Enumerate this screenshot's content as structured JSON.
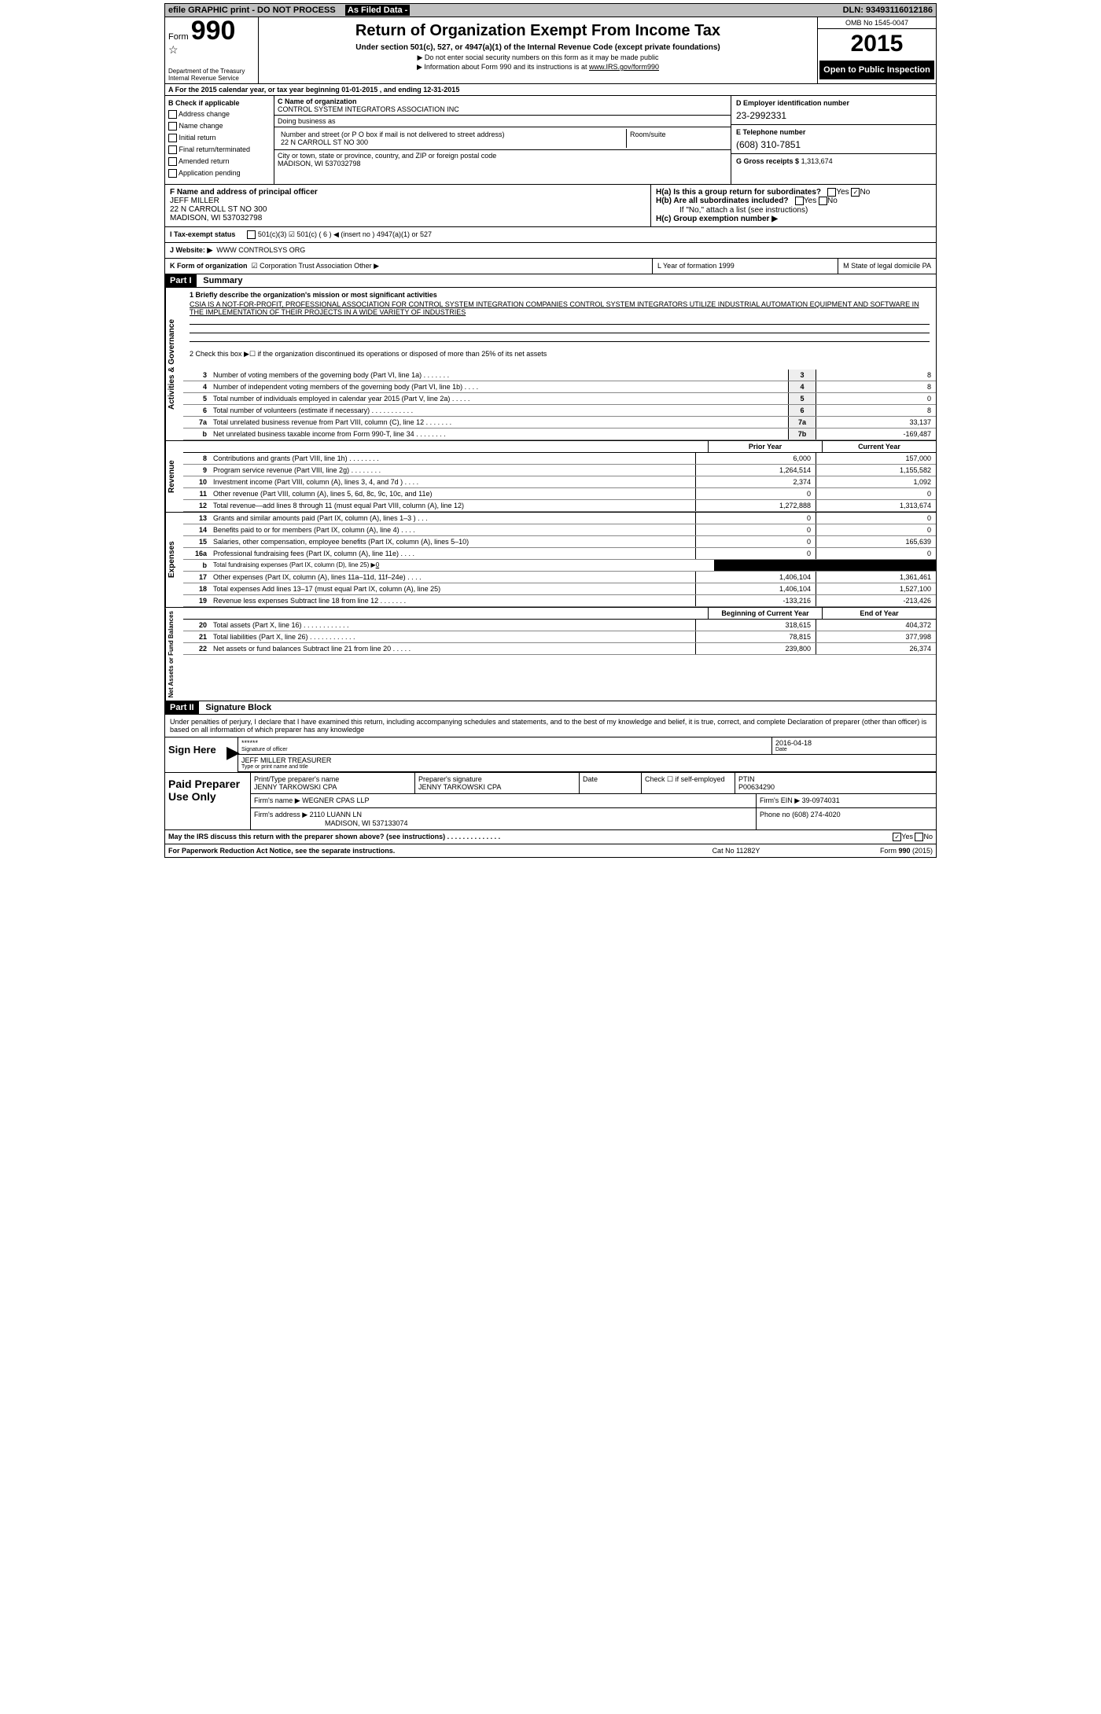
{
  "topbar": {
    "efile": "efile GRAPHIC print - DO NOT PROCESS",
    "asfiled": "As Filed Data -",
    "dln_label": "DLN:",
    "dln": "93493116012186"
  },
  "header": {
    "form": "Form",
    "num": "990",
    "dept": "Department of the Treasury\nInternal Revenue Service",
    "title": "Return of Organization Exempt From Income Tax",
    "sub": "Under section 501(c), 527, or 4947(a)(1) of the Internal Revenue Code (except private foundations)",
    "arrow1": "▶ Do not enter social security numbers on this form as it may be made public",
    "arrow2_pre": "▶ Information about Form 990 and its instructions is at ",
    "arrow2_link": "www.IRS.gov/form990",
    "omb": "OMB No 1545-0047",
    "year": "2015",
    "open": "Open to Public Inspection"
  },
  "rowA": "A  For the 2015 calendar year, or tax year beginning 01-01-2015    , and ending 12-31-2015",
  "B": {
    "hdr": "B Check if applicable",
    "items": [
      "Address change",
      "Name change",
      "Initial return",
      "Final return/terminated",
      "Amended return",
      "Application pending"
    ]
  },
  "C": {
    "name_label": "C Name of organization",
    "name": "CONTROL SYSTEM INTEGRATORS ASSOCIATION INC",
    "dba_label": "Doing business as",
    "street_label": "Number and street (or P O  box if mail is not delivered to street address)",
    "street": "22 N CARROLL ST NO 300",
    "room_label": "Room/suite",
    "city_label": "City or town, state or province, country, and ZIP or foreign postal code",
    "city": "MADISON, WI  537032798"
  },
  "D": {
    "label": "D Employer identification number",
    "val": "23-2992331"
  },
  "E": {
    "label": "E Telephone number",
    "val": "(608) 310-7851"
  },
  "G": {
    "label": "G Gross receipts $",
    "val": "1,313,674"
  },
  "F": {
    "label": "F   Name and address of principal officer",
    "name": "JEFF MILLER",
    "addr1": "22 N CARROLL ST NO 300",
    "addr2": "MADISON, WI  537032798"
  },
  "H": {
    "a": "H(a)  Is this a group return for subordinates?",
    "a_yes": "Yes",
    "a_no": "No",
    "b": "H(b)  Are all subordinates included?",
    "b_yes": "Yes",
    "b_no": "No",
    "b_note": "If \"No,\" attach a list  (see instructions)",
    "c": "H(c)   Group exemption number ▶"
  },
  "I": {
    "label": "I   Tax-exempt status",
    "opts": "501(c)(3)    ☑  501(c) ( 6 ) ◀ (insert no )      4947(a)(1) or      527"
  },
  "J": {
    "label": "J   Website: ▶",
    "val": "WWW CONTROLSYS ORG"
  },
  "K": {
    "label": "K Form of organization",
    "opts": "☑ Corporation    Trust    Association    Other ▶",
    "L": "L Year of formation   1999",
    "M": "M State of legal domicile   PA"
  },
  "part1": {
    "hdr": "Part I",
    "title": "Summary",
    "q1": "1 Briefly describe the organization's mission or most significant activities",
    "mission": "CSIA IS A NOT-FOR-PROFIT, PROFESSIONAL ASSOCIATION FOR CONTROL SYSTEM INTEGRATION COMPANIES CONTROL SYSTEM INTEGRATORS UTILIZE INDUSTRIAL AUTOMATION EQUIPMENT AND SOFTWARE IN THE IMPLEMENTATION OF THEIR PROJECTS IN A WIDE VARIETY OF INDUSTRIES",
    "q2": "2  Check this box ▶☐ if the organization discontinued its operations or disposed of more than 25% of its net assets",
    "lines_single": [
      {
        "n": "3",
        "txt": "Number of voting members of the governing body (Part VI, line 1a)  .   .   .   .   .   .   .",
        "box": "3",
        "val": "8"
      },
      {
        "n": "4",
        "txt": "Number of independent voting members of the governing body (Part VI, line 1b)  .   .   .   .",
        "box": "4",
        "val": "8"
      },
      {
        "n": "5",
        "txt": "Total number of individuals employed in calendar year 2015 (Part V, line 2a)  .   .   .   .   .",
        "box": "5",
        "val": "0"
      },
      {
        "n": "6",
        "txt": "Total number of volunteers (estimate if necessary)   .   .   .   .   .   .   .   .   .   .   .",
        "box": "6",
        "val": "8"
      },
      {
        "n": "7a",
        "txt": "Total unrelated business revenue from Part VIII, column (C), line 12  .   .   .   .   .   .   .",
        "box": "7a",
        "val": "33,137"
      },
      {
        "n": "b",
        "txt": "Net unrelated business taxable income from Form 990-T, line 34  .   .   .   .   .   .   .   .",
        "box": "7b",
        "val": "-169,487"
      }
    ],
    "prior_hdr": "Prior Year",
    "current_hdr": "Current Year",
    "rev": [
      {
        "n": "8",
        "txt": "Contributions and grants (Part VIII, line 1h)  .   .   .   .   .   .   .   .",
        "p": "6,000",
        "c": "157,000"
      },
      {
        "n": "9",
        "txt": "Program service revenue (Part VIII, line 2g)   .   .   .   .   .   .   .   .",
        "p": "1,264,514",
        "c": "1,155,582"
      },
      {
        "n": "10",
        "txt": "Investment income (Part VIII, column (A), lines 3, 4, and 7d )   .   .   .   .",
        "p": "2,374",
        "c": "1,092"
      },
      {
        "n": "11",
        "txt": "Other revenue (Part VIII, column (A), lines 5, 6d, 8c, 9c, 10c, and 11e)",
        "p": "0",
        "c": "0"
      },
      {
        "n": "12",
        "txt": "Total revenue—add lines 8 through 11 (must equal Part VIII, column (A), line 12)",
        "p": "1,272,888",
        "c": "1,313,674"
      }
    ],
    "exp": [
      {
        "n": "13",
        "txt": "Grants and similar amounts paid (Part IX, column (A), lines 1–3 )  .   .   .",
        "p": "0",
        "c": "0"
      },
      {
        "n": "14",
        "txt": "Benefits paid to or for members (Part IX, column (A), line 4)  .   .   .   .",
        "p": "0",
        "c": "0"
      },
      {
        "n": "15",
        "txt": "Salaries, other compensation, employee benefits (Part IX, column (A), lines 5–10)",
        "p": "0",
        "c": "165,639"
      },
      {
        "n": "16a",
        "txt": "Professional fundraising fees (Part IX, column (A), line 11e)  .   .   .   .",
        "p": "0",
        "c": "0"
      },
      {
        "n": "b",
        "txt": "Total fundraising expenses (Part IX, column (D), line 25) ▶",
        "p": "__black__",
        "c": "__black__",
        "small": true,
        "zero": "0"
      },
      {
        "n": "17",
        "txt": "Other expenses (Part IX, column (A), lines 11a–11d, 11f–24e)  .   .   .   .",
        "p": "1,406,104",
        "c": "1,361,461"
      },
      {
        "n": "18",
        "txt": "Total expenses  Add lines 13–17 (must equal Part IX, column (A), line 25)",
        "p": "1,406,104",
        "c": "1,527,100"
      },
      {
        "n": "19",
        "txt": "Revenue less expenses  Subtract line 18 from line 12 .   .   .   .   .   .   .",
        "p": "-133,216",
        "c": "-213,426"
      }
    ],
    "beg_hdr": "Beginning of Current Year",
    "end_hdr": "End of Year",
    "net": [
      {
        "n": "20",
        "txt": "Total assets (Part X, line 16)  .   .   .   .   .   .   .   .   .   .   .   .",
        "p": "318,615",
        "c": "404,372"
      },
      {
        "n": "21",
        "txt": "Total liabilities (Part X, line 26)  .   .   .   .   .   .   .   .   .   .   .   .",
        "p": "78,815",
        "c": "377,998"
      },
      {
        "n": "22",
        "txt": "Net assets or fund balances  Subtract line 21 from line 20 .   .   .   .   .",
        "p": "239,800",
        "c": "26,374"
      }
    ]
  },
  "part2": {
    "hdr": "Part II",
    "title": "Signature Block",
    "decl": "Under penalties of perjury, I declare that I have examined this return, including accompanying schedules and statements, and to the best of my knowledge and belief, it is true, correct, and complete  Declaration of preparer (other than officer) is based on all information of which preparer has any knowledge"
  },
  "sign": {
    "here": "Sign Here",
    "stars": "******",
    "sig_label": "Signature of officer",
    "date": "2016-04-18",
    "date_label": "Date",
    "name": "JEFF MILLER TREASURER",
    "name_label": "Type or print name and title"
  },
  "paid": {
    "hdr": "Paid Preparer Use Only",
    "print_label": "Print/Type preparer's name",
    "print_val": "JENNY TARKOWSKI CPA",
    "sig_label": "Preparer's signature",
    "sig_val": "JENNY TARKOWSKI CPA",
    "date_label": "Date",
    "check_label": "Check ☐ if self-employed",
    "ptin_label": "PTIN",
    "ptin": "P00634290",
    "firm_name_label": "Firm's name     ▶",
    "firm_name": "WEGNER CPAS LLP",
    "firm_ein_label": "Firm's EIN ▶",
    "firm_ein": "39-0974031",
    "firm_addr_label": "Firm's address ▶",
    "firm_addr": "2110 LUANN LN",
    "firm_city": "MADISON, WI  537133074",
    "phone_label": "Phone no",
    "phone": "(608) 274-4020"
  },
  "may": "May the IRS discuss this return with the preparer shown above? (see instructions)   .   .   .   .   .   .   .   .   .   .   .   .   .   .",
  "may_yes": "Yes",
  "may_no": "No",
  "footer": {
    "left": "For Paperwork Reduction Act Notice, see the separate instructions.",
    "mid": "Cat No 11282Y",
    "right": "Form 990 (2015)"
  },
  "sidelabels": {
    "ag": "Activities & Governance",
    "rev": "Revenue",
    "exp": "Expenses",
    "net": "Net Assets or Fund Balances"
  }
}
